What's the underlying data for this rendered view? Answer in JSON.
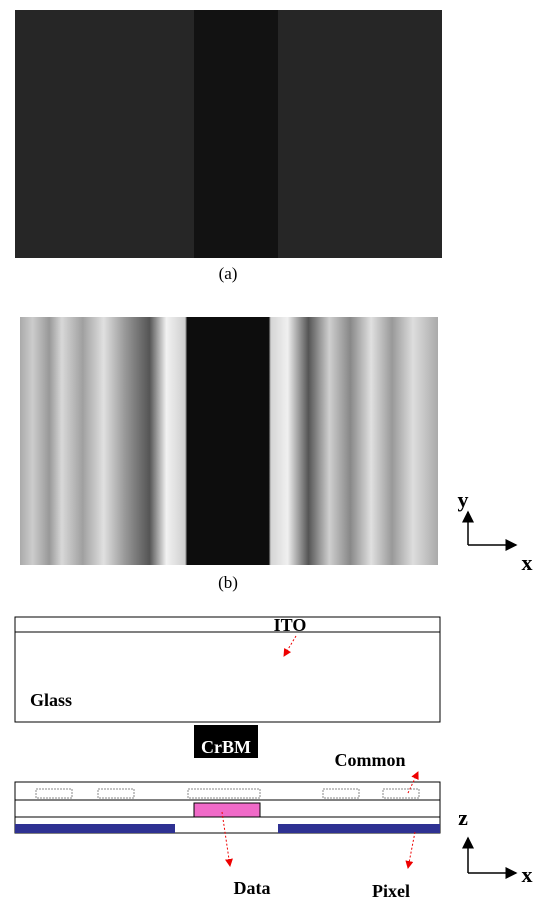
{
  "panel_a": {
    "caption": "(a)"
  },
  "panel_b": {
    "caption": "(b)",
    "axes": {
      "vertical": "y",
      "horizontal": "x"
    }
  },
  "cross_section": {
    "top_plate": {
      "ito": "ITO",
      "glass": "Glass",
      "black_matrix": "CrBM"
    },
    "bottom_plate": {
      "common": "Common",
      "data": "Data",
      "pixel": "Pixel"
    },
    "axes": {
      "vertical": "z",
      "horizontal": "x"
    }
  }
}
